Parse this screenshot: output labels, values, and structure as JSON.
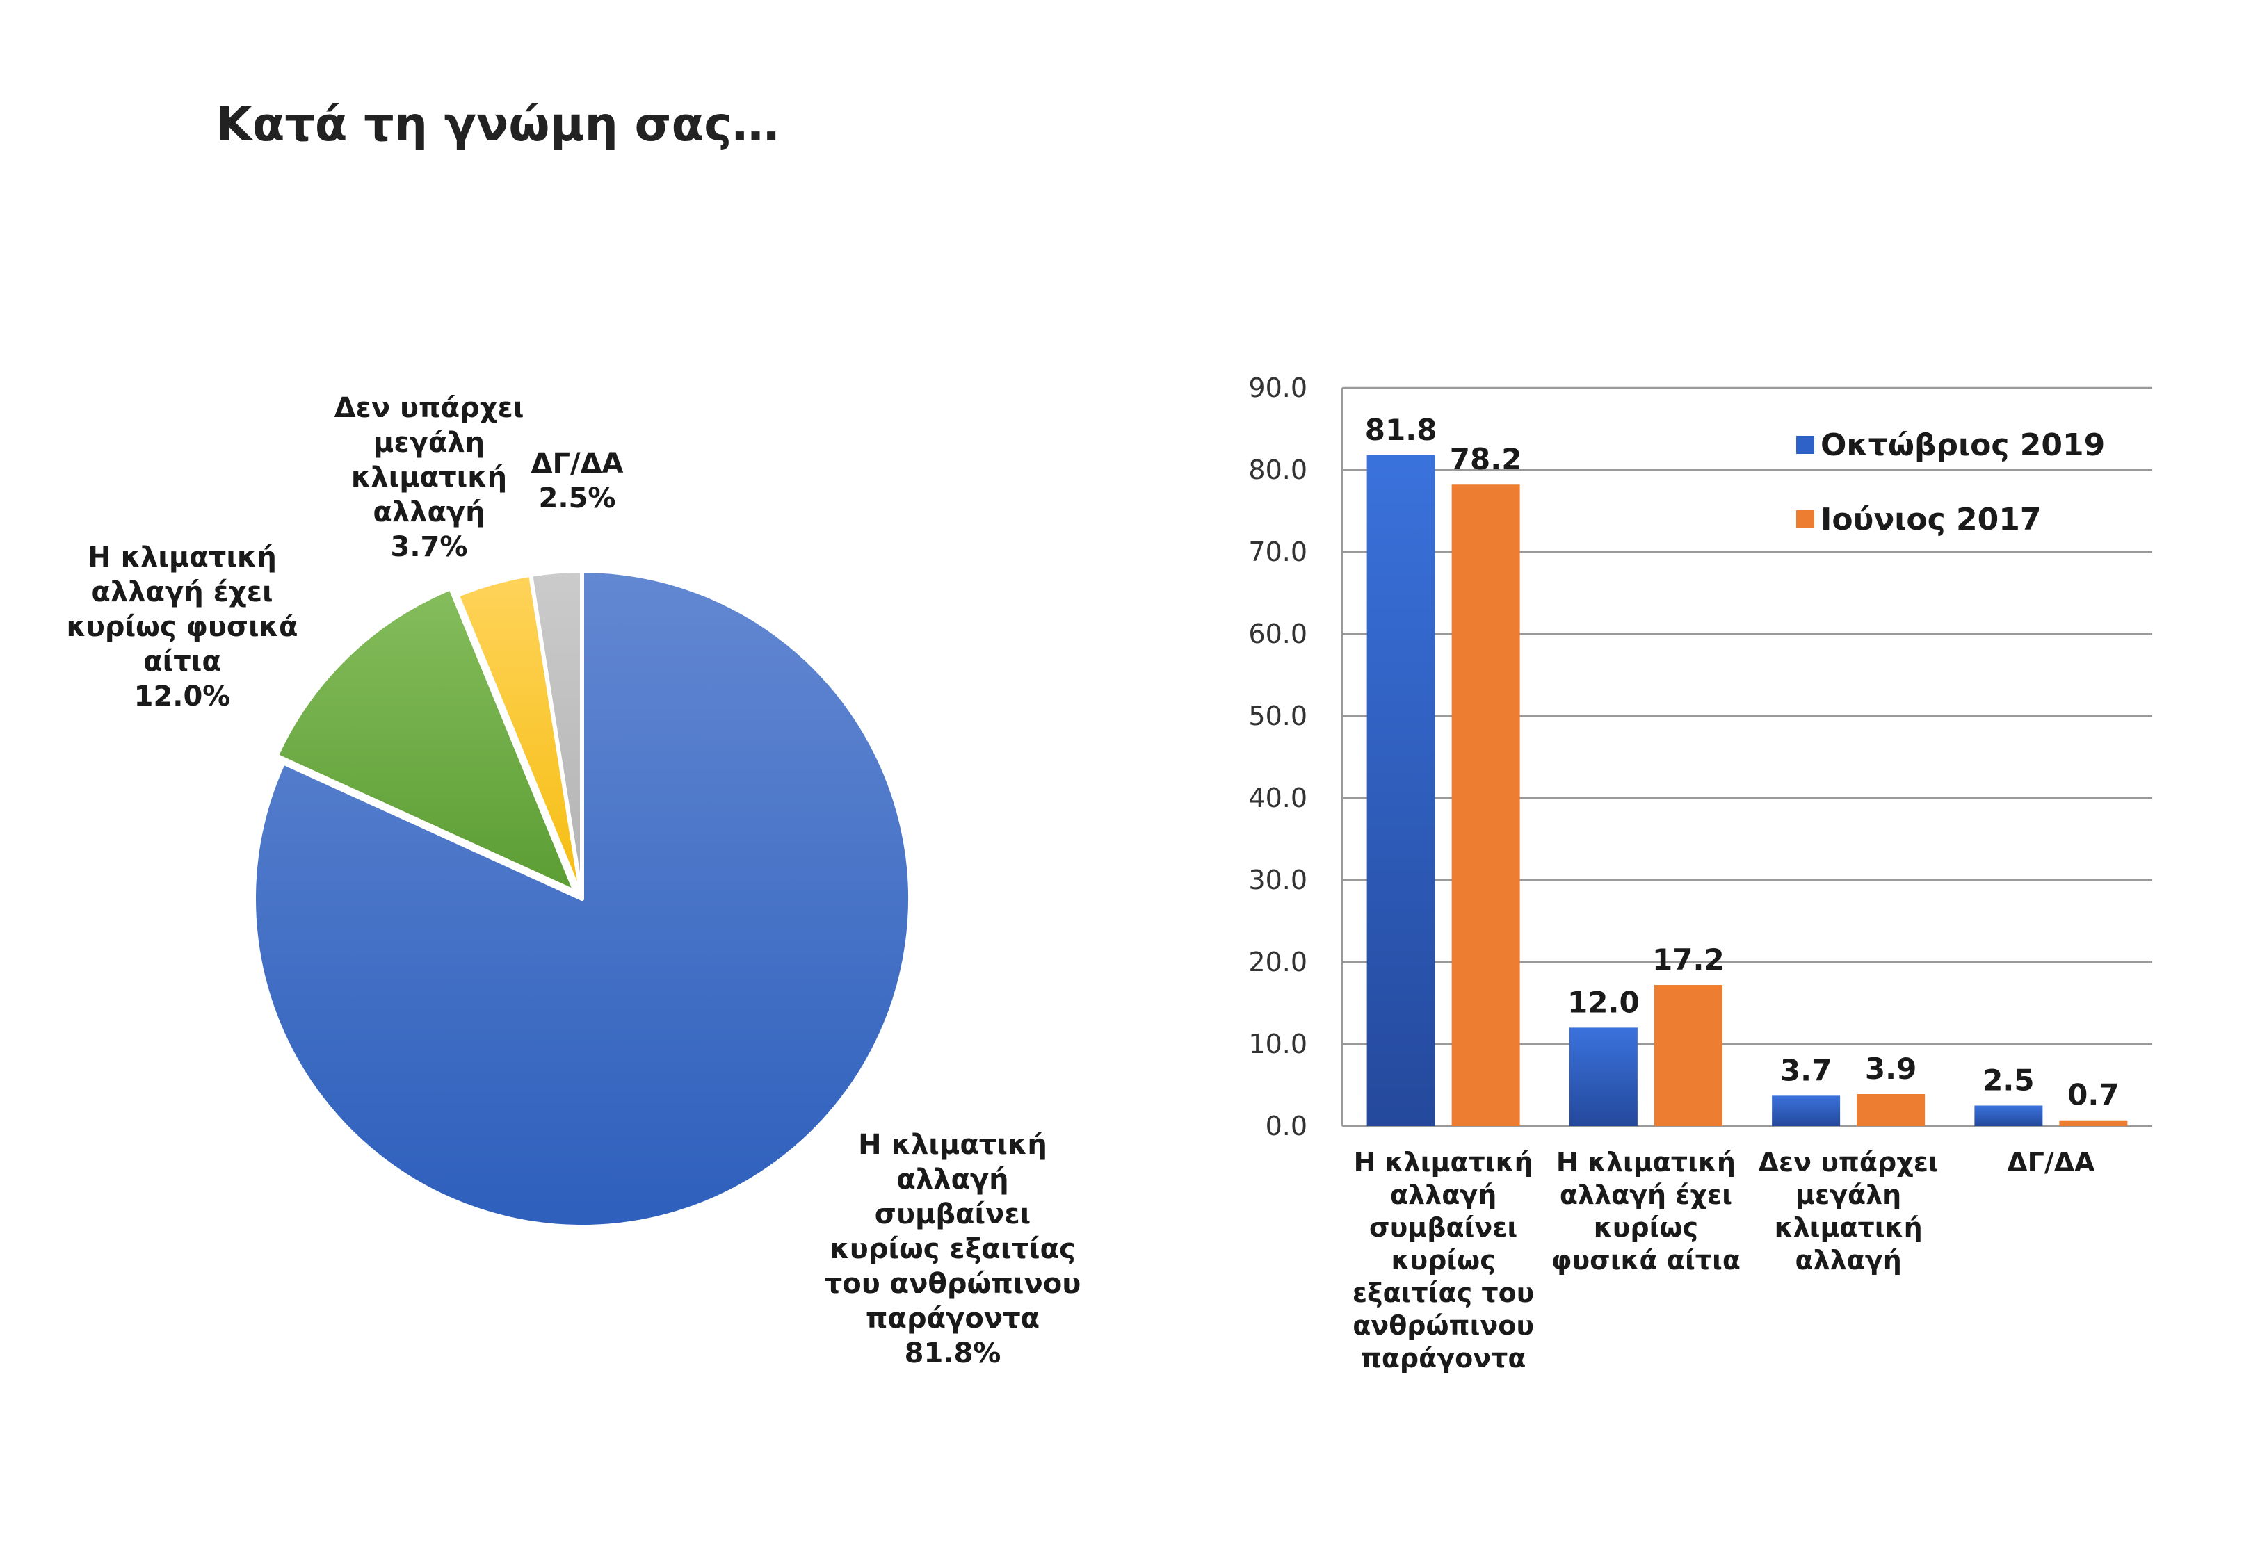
{
  "title": "Κατά τη γνώμη σας…",
  "chart_data": [
    {
      "type": "pie",
      "slices": [
        {
          "label_lines": [
            "Η κλιματική",
            "αλλαγή",
            "συμβαίνει",
            "κυρίως εξαιτίας",
            "του ανθρώπινου",
            "παράγοντα"
          ],
          "value": 81.8,
          "value_label": "81.8%",
          "color": "#3a67c4"
        },
        {
          "label_lines": [
            "Η κλιματική",
            "αλλαγή έχει",
            "κυρίως φυσικά",
            "αίτια"
          ],
          "value": 12.0,
          "value_label": "12.0%",
          "color": "#6fac46"
        },
        {
          "label_lines": [
            "Δεν υπάρχει",
            "μεγάλη",
            "κλιματική",
            "αλλαγή"
          ],
          "value": 3.7,
          "value_label": "3.7%",
          "color": "#fbc52b"
        },
        {
          "label_lines": [
            "ΔΓ/ΔΑ"
          ],
          "value": 2.5,
          "value_label": "2.5%",
          "color": "#c0c0c0"
        }
      ]
    },
    {
      "type": "bar",
      "categories": [
        [
          "Η κλιματική",
          "αλλαγή",
          "συμβαίνει",
          "κυρίως",
          "εξαιτίας του",
          "ανθρώπινου",
          "παράγοντα"
        ],
        [
          "Η κλιματική",
          "αλλαγή έχει",
          "κυρίως",
          "φυσικά αίτια"
        ],
        [
          "Δεν υπάρχει",
          "μεγάλη",
          "κλιματική",
          "αλλαγή"
        ],
        [
          "ΔΓ/ΔΑ"
        ]
      ],
      "series": [
        {
          "name": "Οκτώβριος 2019",
          "values": [
            81.8,
            12.0,
            3.7,
            2.5
          ],
          "labels": [
            "81.8",
            "12.0",
            "3.7",
            "2.5"
          ],
          "color": "#3068cf"
        },
        {
          "name": "Ιούνιος 2017",
          "values": [
            78.2,
            17.2,
            3.9,
            0.7
          ],
          "labels": [
            "78.2",
            "17.2",
            "3.9",
            "0.7"
          ],
          "color": "#ed7d31"
        }
      ],
      "ylim": [
        0,
        90
      ],
      "yticks": [
        "0.0",
        "10.0",
        "20.0",
        "30.0",
        "40.0",
        "50.0",
        "60.0",
        "70.0",
        "80.0",
        "90.0"
      ],
      "grid": true,
      "legend": "top-right"
    }
  ]
}
